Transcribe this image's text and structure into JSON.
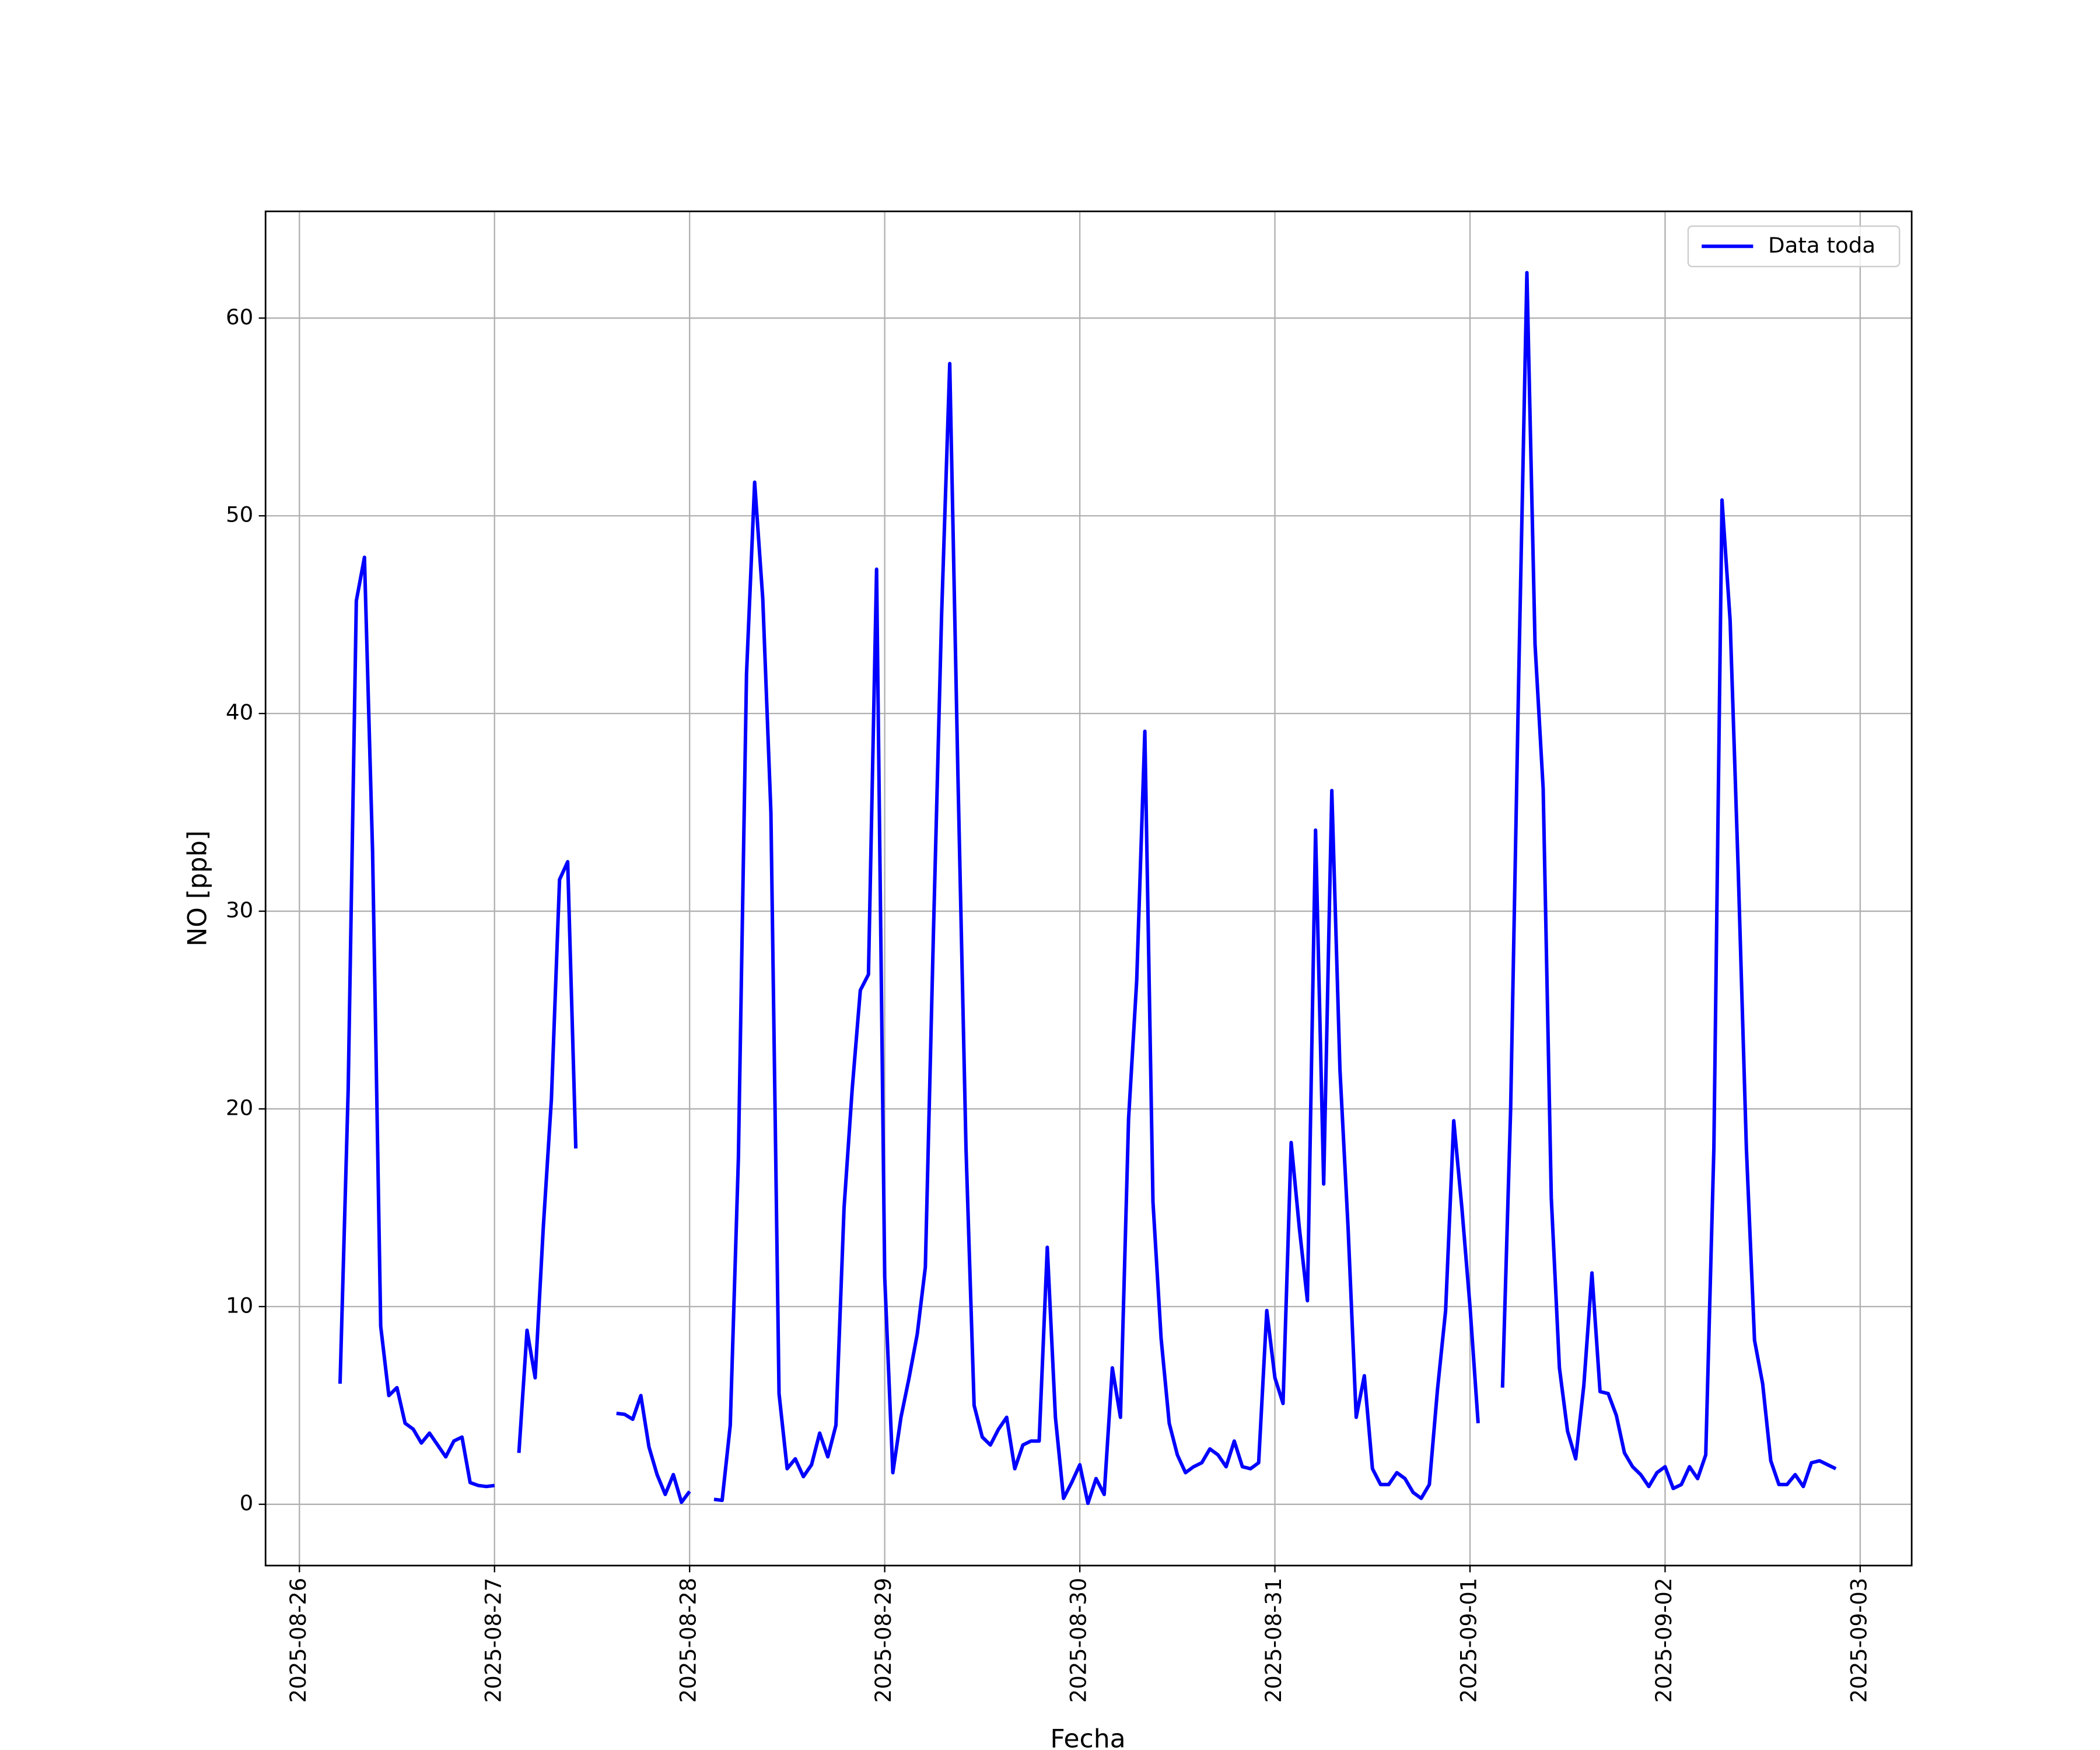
{
  "chart_data": {
    "type": "line",
    "xlabel": "Fecha",
    "ylabel": "NO [ppb]",
    "x": [
      "2025-08-26 05:00",
      "2025-08-26 06:00",
      "2025-08-26 07:00",
      "2025-08-26 08:00",
      "2025-08-26 09:00",
      "2025-08-26 10:00",
      "2025-08-26 11:00",
      "2025-08-26 12:00",
      "2025-08-26 13:00",
      "2025-08-26 14:00",
      "2025-08-26 15:00",
      "2025-08-26 16:00",
      "2025-08-26 17:00",
      "2025-08-26 18:00",
      "2025-08-26 19:00",
      "2025-08-26 20:00",
      "2025-08-26 21:00",
      "2025-08-26 22:00",
      "2025-08-26 23:00",
      "2025-08-27 00:00",
      "2025-08-27 01:00",
      "2025-08-27 03:00",
      "2025-08-27 04:00",
      "2025-08-27 05:00",
      "2025-08-27 06:00",
      "2025-08-27 07:00",
      "2025-08-27 08:00",
      "2025-08-27 09:00",
      "2025-08-27 10:00",
      "2025-08-27 11:00",
      "2025-08-27 15:00",
      "2025-08-27 16:00",
      "2025-08-27 17:00",
      "2025-08-27 18:00",
      "2025-08-27 19:00",
      "2025-08-27 20:00",
      "2025-08-27 21:00",
      "2025-08-27 22:00",
      "2025-08-27 23:00",
      "2025-08-28 00:00",
      "2025-08-28 01:00",
      "2025-08-28 03:00",
      "2025-08-28 04:00",
      "2025-08-28 05:00",
      "2025-08-28 06:00",
      "2025-08-28 07:00",
      "2025-08-28 08:00",
      "2025-08-28 09:00",
      "2025-08-28 10:00",
      "2025-08-28 11:00",
      "2025-08-28 12:00",
      "2025-08-28 13:00",
      "2025-08-28 14:00",
      "2025-08-28 15:00",
      "2025-08-28 16:00",
      "2025-08-28 17:00",
      "2025-08-28 18:00",
      "2025-08-28 19:00",
      "2025-08-28 20:00",
      "2025-08-28 21:00",
      "2025-08-28 22:00",
      "2025-08-28 23:00",
      "2025-08-29 00:00",
      "2025-08-29 01:00",
      "2025-08-29 02:00",
      "2025-08-29 03:00",
      "2025-08-29 04:00",
      "2025-08-29 05:00",
      "2025-08-29 06:00",
      "2025-08-29 07:00",
      "2025-08-29 08:00",
      "2025-08-29 09:00",
      "2025-08-29 10:00",
      "2025-08-29 11:00",
      "2025-08-29 12:00",
      "2025-08-29 13:00",
      "2025-08-29 14:00",
      "2025-08-29 15:00",
      "2025-08-29 16:00",
      "2025-08-29 17:00",
      "2025-08-29 18:00",
      "2025-08-29 19:00",
      "2025-08-29 20:00",
      "2025-08-29 21:00",
      "2025-08-29 22:00",
      "2025-08-29 23:00",
      "2025-08-30 00:00",
      "2025-08-30 01:00",
      "2025-08-30 02:00",
      "2025-08-30 03:00",
      "2025-08-30 04:00",
      "2025-08-30 05:00",
      "2025-08-30 06:00",
      "2025-08-30 07:00",
      "2025-08-30 08:00",
      "2025-08-30 09:00",
      "2025-08-30 10:00",
      "2025-08-30 11:00",
      "2025-08-30 12:00",
      "2025-08-30 13:00",
      "2025-08-30 14:00",
      "2025-08-30 15:00",
      "2025-08-30 16:00",
      "2025-08-30 17:00",
      "2025-08-30 18:00",
      "2025-08-30 19:00",
      "2025-08-30 20:00",
      "2025-08-30 21:00",
      "2025-08-30 22:00",
      "2025-08-30 23:00",
      "2025-08-31 00:00",
      "2025-08-31 01:00",
      "2025-08-31 02:00",
      "2025-08-31 03:00",
      "2025-08-31 04:00",
      "2025-08-31 05:00",
      "2025-08-31 06:00",
      "2025-08-31 07:00",
      "2025-08-31 08:00",
      "2025-08-31 09:00",
      "2025-08-31 10:00",
      "2025-08-31 11:00",
      "2025-08-31 12:00",
      "2025-08-31 13:00",
      "2025-08-31 14:00",
      "2025-08-31 15:00",
      "2025-08-31 16:00",
      "2025-08-31 17:00",
      "2025-08-31 18:00",
      "2025-08-31 19:00",
      "2025-08-31 20:00",
      "2025-08-31 21:00",
      "2025-08-31 22:00",
      "2025-08-31 23:00",
      "2025-09-01 00:00",
      "2025-09-01 01:00",
      "2025-09-01 02:00",
      "2025-09-01 04:00",
      "2025-09-01 05:00",
      "2025-09-01 06:00",
      "2025-09-01 07:00",
      "2025-09-01 08:00",
      "2025-09-01 09:00",
      "2025-09-01 10:00",
      "2025-09-01 11:00",
      "2025-09-01 12:00",
      "2025-09-01 13:00",
      "2025-09-01 14:00",
      "2025-09-01 15:00",
      "2025-09-01 16:00",
      "2025-09-01 17:00",
      "2025-09-01 18:00",
      "2025-09-01 19:00",
      "2025-09-01 20:00",
      "2025-09-01 21:00",
      "2025-09-01 22:00",
      "2025-09-01 23:00",
      "2025-09-02 00:00",
      "2025-09-02 01:00",
      "2025-09-02 02:00",
      "2025-09-02 03:00",
      "2025-09-02 04:00",
      "2025-09-02 05:00",
      "2025-09-02 06:00",
      "2025-09-02 07:00",
      "2025-09-02 08:00",
      "2025-09-02 09:00",
      "2025-09-02 10:00",
      "2025-09-02 11:00",
      "2025-09-02 12:00",
      "2025-09-02 13:00",
      "2025-09-02 14:00",
      "2025-09-02 15:00",
      "2025-09-02 16:00",
      "2025-09-02 17:00",
      "2025-09-02 18:00",
      "2025-09-02 19:00",
      "2025-09-02 20:00",
      "2025-09-02 21:00"
    ],
    "series": [
      {
        "name": "Data toda",
        "color": "#0000ff",
        "values": [
          6.1,
          21,
          45.7,
          47.9,
          33,
          9,
          5.5,
          5.9,
          4.1,
          3.8,
          3.1,
          3.6,
          3.0,
          2.4,
          3.2,
          3.4,
          1.1,
          0.95,
          0.9,
          0.95,
          null,
          2.6,
          8.8,
          6.4,
          14,
          20.5,
          31.6,
          32.5,
          18.0,
          null,
          4.6,
          4.55,
          4.3,
          5.5,
          2.9,
          1.5,
          0.5,
          1.5,
          0.1,
          0.65,
          null,
          0.25,
          0.2,
          4.0,
          17.5,
          42,
          51.7,
          45.8,
          35,
          5.6,
          1.8,
          2.3,
          1.4,
          2.0,
          3.6,
          2.4,
          4.0,
          15,
          21,
          26,
          26.8,
          47.3,
          11.5,
          1.6,
          4.4,
          6.4,
          8.6,
          12,
          29,
          45,
          57.7,
          37,
          18,
          5.0,
          3.4,
          3.0,
          3.8,
          4.4,
          1.8,
          3.0,
          3.2,
          3.2,
          13.0,
          4.4,
          0.3,
          1.1,
          2.0,
          0.05,
          1.3,
          0.5,
          6.9,
          4.4,
          19.5,
          26.5,
          39.1,
          15.3,
          8.4,
          4.1,
          2.5,
          1.6,
          1.9,
          2.1,
          2.8,
          2.5,
          1.9,
          3.2,
          1.9,
          1.8,
          2.1,
          9.8,
          6.4,
          5.1,
          18.3,
          14,
          10.3,
          34.1,
          16.2,
          36.1,
          22,
          14,
          4.4,
          6.5,
          1.8,
          1.0,
          1.0,
          1.6,
          1.3,
          0.6,
          0.3,
          1.0,
          5.8,
          9.8,
          19.4,
          15,
          10,
          4.1,
          null,
          5.9,
          20,
          42,
          62.3,
          43.5,
          36.2,
          15.5,
          6.9,
          3.7,
          2.3,
          6.0,
          11.7,
          5.7,
          5.6,
          4.5,
          2.6,
          1.9,
          1.5,
          0.9,
          1.6,
          1.9,
          0.8,
          1.0,
          1.9,
          1.3,
          2.5,
          18,
          50.8,
          44.7,
          32,
          18,
          8.3,
          6.1,
          2.2,
          1.0,
          1.0,
          1.5,
          0.9,
          2.1,
          2.2,
          2.0,
          1.8
        ]
      }
    ],
    "xlim": [
      "2025-08-25 19:50",
      "2025-09-03 06:20"
    ],
    "xticks": [
      "2025-08-26",
      "2025-08-27",
      "2025-08-28",
      "2025-08-29",
      "2025-08-30",
      "2025-08-31",
      "2025-09-01",
      "2025-09-02",
      "2025-09-03"
    ],
    "ylim": [
      -3.1,
      65.4
    ],
    "yticks": [
      0,
      10,
      20,
      30,
      40,
      50,
      60
    ],
    "grid": true,
    "legend": "upper right"
  }
}
